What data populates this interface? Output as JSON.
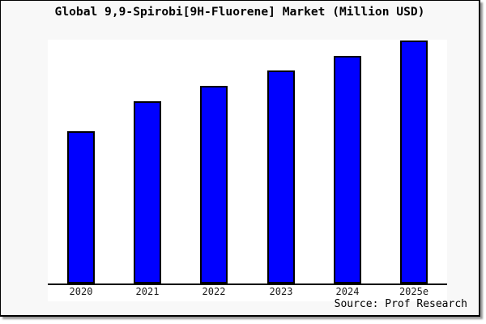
{
  "chart_data": {
    "type": "bar",
    "title": "Global 9,9-Spirobi[9H-Fluorene] Market (Million USD)",
    "categories": [
      "2020",
      "2021",
      "2022",
      "2023",
      "2024",
      "2025e"
    ],
    "values": [
      62.7,
      75.0,
      81.3,
      87.7,
      93.7,
      100.0
    ],
    "value_note": "y-axis has no tick labels; values are relative bar heights with 2025e = 100",
    "ylim": [
      0,
      100
    ],
    "xlabel": "",
    "ylabel": "",
    "grid": false,
    "legend": false,
    "bar_color": "#0000ff",
    "bar_border_color": "#000000",
    "plot_background": "#ffffff",
    "figure_background": "#f8f8f8",
    "source": "Source: Prof Research"
  }
}
